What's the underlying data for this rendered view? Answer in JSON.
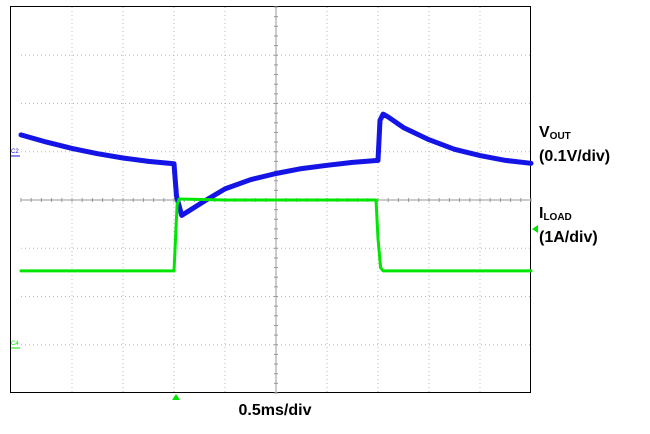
{
  "chart_data": {
    "type": "line",
    "grid": true,
    "x_divisions": 10,
    "y_divisions": 8,
    "series": [
      {
        "name": "VOUT",
        "color": "#1414e6",
        "scale": "(0.1V/div)",
        "channel_marker": "C2",
        "x": [
          0,
          0.5,
          1,
          1.5,
          2,
          2.5,
          3,
          3.05,
          3.15,
          3.3,
          3.6,
          4,
          4.5,
          5,
          5.5,
          6,
          6.5,
          7,
          7.04,
          7.1,
          7.2,
          7.5,
          8,
          8.5,
          9,
          9.5,
          10
        ],
        "y": [
          1.35,
          1.2,
          1.07,
          0.96,
          0.87,
          0.8,
          0.75,
          0.08,
          -0.32,
          -0.22,
          -0.02,
          0.23,
          0.42,
          0.55,
          0.65,
          0.72,
          0.78,
          0.82,
          1.65,
          1.78,
          1.72,
          1.5,
          1.25,
          1.05,
          0.92,
          0.82,
          0.76
        ]
      },
      {
        "name": "ILOAD",
        "color": "#00e600",
        "scale": "(1A/div)",
        "channel_marker": "C4",
        "x": [
          0,
          1,
          2,
          3,
          3.03,
          3.06,
          3.1,
          4,
          5,
          6,
          6.96,
          7,
          7.05,
          7.1,
          8,
          9,
          10
        ],
        "y": [
          -1.47,
          -1.47,
          -1.47,
          -1.47,
          -0.8,
          -0.1,
          0.02,
          0.0,
          0.0,
          0.0,
          0.0,
          -0.8,
          -1.4,
          -1.47,
          -1.47,
          -1.47,
          -1.47
        ]
      }
    ],
    "x_label": "0.5ms/div"
  }
}
